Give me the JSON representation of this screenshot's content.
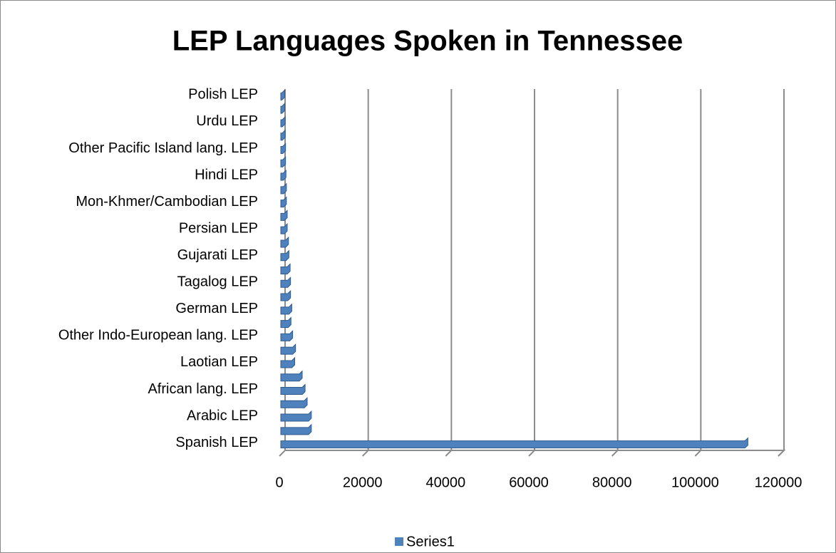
{
  "chart_data": {
    "type": "bar",
    "orientation": "horizontal",
    "title": "LEP Languages Spoken  in Tennessee",
    "categories": [
      "Spanish LEP",
      null,
      "Arabic LEP",
      null,
      "African lang. LEP",
      null,
      "Laotian LEP",
      null,
      "Other Indo-European lang. LEP",
      null,
      "German LEP",
      null,
      "Tagalog LEP",
      null,
      "Gujarati LEP",
      null,
      "Persian LEP",
      null,
      "Mon-Khmer/Cambodian LEP",
      null,
      "Hindi LEP",
      null,
      "Other Pacific Island lang. LEP",
      null,
      "Urdu LEP",
      null,
      "Polish LEP"
    ],
    "series": [
      {
        "name": "Series1",
        "color": "#4f81bd",
        "values": [
          112000,
          7000,
          7000,
          6000,
          5500,
          4800,
          3000,
          3200,
          2500,
          2100,
          2300,
          2000,
          2000,
          1900,
          1600,
          1500,
          1200,
          1200,
          1000,
          1000,
          900,
          800,
          800,
          700,
          700,
          600,
          600
        ]
      }
    ],
    "xlim": [
      0,
      120000
    ],
    "xticks": [
      0,
      20000,
      40000,
      60000,
      80000,
      100000,
      120000
    ],
    "grid": true,
    "legend": "bottom"
  }
}
